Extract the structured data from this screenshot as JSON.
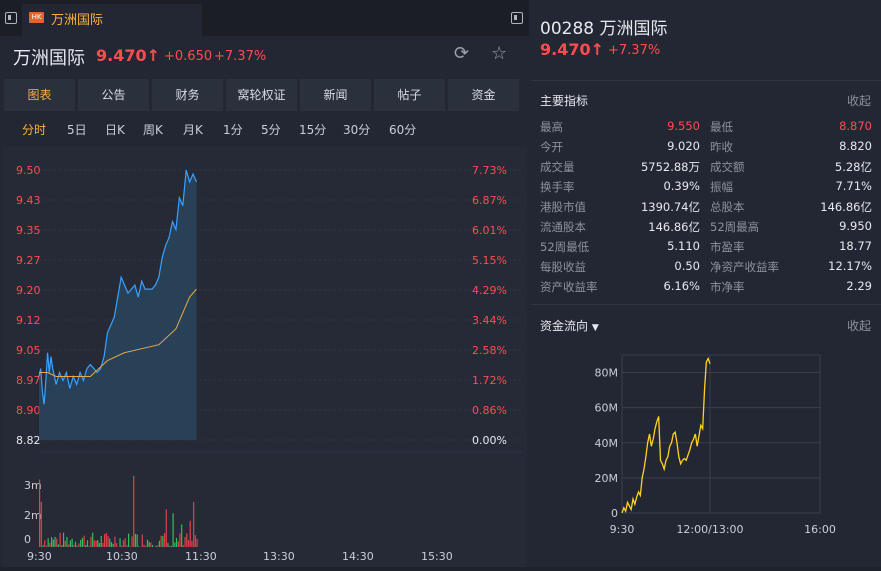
{
  "tab": {
    "market_badge": "HK",
    "label": "万洲国际"
  },
  "header": {
    "name": "万洲国际",
    "price": "9.470",
    "arrow": "↑",
    "change": "+0.650",
    "change_pct": "+7.37%"
  },
  "menu": [
    {
      "label": "图表",
      "active": true
    },
    {
      "label": "公告",
      "active": false
    },
    {
      "label": "财务",
      "active": false
    },
    {
      "label": "窝轮权证",
      "active": false
    },
    {
      "label": "新闻",
      "active": false
    },
    {
      "label": "帖子",
      "active": false
    },
    {
      "label": "资金",
      "active": false
    }
  ],
  "periods": [
    {
      "label": "分时",
      "active": true
    },
    {
      "label": "5日",
      "active": false
    },
    {
      "label": "日K",
      "active": false
    },
    {
      "label": "周K",
      "active": false
    },
    {
      "label": "月K",
      "active": false
    },
    {
      "label": "1分",
      "active": false
    },
    {
      "label": "5分",
      "active": false
    },
    {
      "label": "15分",
      "active": false
    },
    {
      "label": "30分",
      "active": false
    },
    {
      "label": "60分",
      "active": false
    }
  ],
  "intraday": {
    "price_ticks": [
      "9.50",
      "9.43",
      "9.35",
      "9.27",
      "9.20",
      "9.12",
      "9.05",
      "8.97",
      "8.90",
      "8.82"
    ],
    "pct_ticks": [
      "7.73%",
      "6.87%",
      "6.01%",
      "5.15%",
      "4.29%",
      "3.44%",
      "2.58%",
      "1.72%",
      "0.86%",
      "0.00%"
    ],
    "volume_ticks": [
      "3m",
      "2m",
      "0"
    ],
    "time_ticks": [
      "9:30",
      "10:30",
      "11:30",
      "13:30",
      "14:30",
      "15:30"
    ],
    "price_range": [
      8.82,
      9.5
    ],
    "price_path": [
      [
        0,
        8.98
      ],
      [
        1,
        9.0
      ],
      [
        2,
        8.94
      ],
      [
        3,
        8.91
      ],
      [
        4,
        8.97
      ],
      [
        5,
        9.04
      ],
      [
        6,
        8.99
      ],
      [
        7,
        9.03
      ],
      [
        8,
        9.0
      ],
      [
        10,
        8.96
      ],
      [
        12,
        8.99
      ],
      [
        14,
        8.97
      ],
      [
        16,
        8.99
      ],
      [
        18,
        8.95
      ],
      [
        20,
        8.98
      ],
      [
        22,
        8.96
      ],
      [
        24,
        8.99
      ],
      [
        26,
        8.97
      ],
      [
        28,
        9.0
      ],
      [
        30,
        9.01
      ],
      [
        32,
        9.0
      ],
      [
        34,
        8.99
      ],
      [
        36,
        9.0
      ],
      [
        38,
        9.03
      ],
      [
        40,
        9.09
      ],
      [
        42,
        9.11
      ],
      [
        44,
        9.13
      ],
      [
        46,
        9.18
      ],
      [
        48,
        9.23
      ],
      [
        50,
        9.21
      ],
      [
        52,
        9.19
      ],
      [
        54,
        9.2
      ],
      [
        56,
        9.21
      ],
      [
        58,
        9.18
      ],
      [
        60,
        9.22
      ],
      [
        62,
        9.2
      ],
      [
        64,
        9.2
      ],
      [
        66,
        9.2
      ],
      [
        68,
        9.21
      ],
      [
        70,
        9.23
      ],
      [
        72,
        9.28
      ],
      [
        74,
        9.31
      ],
      [
        76,
        9.33
      ],
      [
        78,
        9.37
      ],
      [
        80,
        9.35
      ],
      [
        82,
        9.43
      ],
      [
        84,
        9.41
      ],
      [
        86,
        9.5
      ],
      [
        88,
        9.47
      ],
      [
        90,
        9.49
      ],
      [
        92,
        9.47
      ]
    ],
    "avg_path": [
      [
        0,
        8.99
      ],
      [
        5,
        8.99
      ],
      [
        10,
        8.98
      ],
      [
        20,
        8.98
      ],
      [
        30,
        8.98
      ],
      [
        35,
        9.0
      ],
      [
        40,
        9.02
      ],
      [
        50,
        9.04
      ],
      [
        60,
        9.05
      ],
      [
        70,
        9.06
      ],
      [
        80,
        9.1
      ],
      [
        85,
        9.15
      ],
      [
        88,
        9.18
      ],
      [
        92,
        9.2
      ]
    ],
    "volume_max": 3.5
  },
  "right": {
    "title": "00288 万洲国际",
    "price": "9.470",
    "arrow": "↑",
    "change_pct": "+7.37%",
    "indicators_title": "主要指标",
    "collapse": "收起",
    "metrics": [
      {
        "l1": "最高",
        "v1": "9.550",
        "c1": "red",
        "l2": "最低",
        "v2": "8.870",
        "c2": "red"
      },
      {
        "l1": "今开",
        "v1": "9.020",
        "c1": "",
        "l2": "昨收",
        "v2": "8.820",
        "c2": ""
      },
      {
        "l1": "成交量",
        "v1": "5752.88万",
        "c1": "",
        "l2": "成交额",
        "v2": "5.28亿",
        "c2": ""
      },
      {
        "l1": "换手率",
        "v1": "0.39%",
        "c1": "",
        "l2": "振幅",
        "v2": "7.71%",
        "c2": ""
      },
      {
        "l1": "港股市值",
        "v1": "1390.74亿",
        "c1": "",
        "l2": "总股本",
        "v2": "146.86亿",
        "c2": ""
      },
      {
        "l1": "流通股本",
        "v1": "146.86亿",
        "c1": "",
        "l2": "52周最高",
        "v2": "9.950",
        "c2": ""
      },
      {
        "l1": "52周最低",
        "v1": "5.110",
        "c1": "",
        "l2": "市盈率",
        "v2": "18.77",
        "c2": ""
      },
      {
        "l1": "每股收益",
        "v1": "0.50",
        "c1": "",
        "l2": "净资产收益率",
        "v2": "12.17%",
        "c2": ""
      },
      {
        "l1": "资产收益率",
        "v1": "6.16%",
        "c1": "",
        "l2": "市净率",
        "v2": "2.29",
        "c2": ""
      }
    ],
    "fund_title": "资金流向",
    "fund_collapse": "收起"
  },
  "chart_data": {
    "type": "line",
    "title": "",
    "xlabel": "",
    "ylabel": "",
    "x_ticks": [
      "9:30",
      "12:00/13:00",
      "16:00"
    ],
    "y_ticks": [
      "0",
      "20M",
      "40M",
      "60M",
      "80M"
    ],
    "ylim": [
      0,
      90
    ],
    "grid": true,
    "series": [
      {
        "values": [
          0,
          3,
          1,
          6,
          4,
          2,
          8,
          5,
          9,
          12,
          10,
          20,
          25,
          32,
          40,
          45,
          38,
          42,
          48,
          52,
          55,
          30,
          28,
          25,
          30,
          32,
          38,
          40,
          45,
          46,
          40,
          32,
          28,
          30,
          31,
          30,
          33,
          36,
          40,
          42,
          45,
          38,
          44,
          50,
          48,
          70,
          86,
          88,
          85
        ]
      }
    ]
  }
}
